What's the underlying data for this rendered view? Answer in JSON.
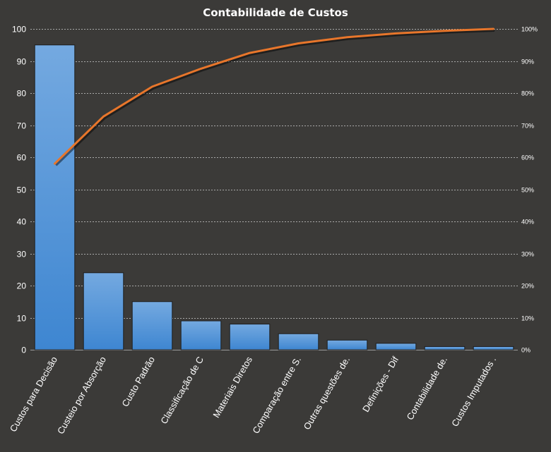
{
  "chart_data": {
    "type": "bar",
    "title": "Contabilidade  de Custos",
    "categories": [
      "Custos para Decisão",
      "Custeio por Absorção",
      "Custo Padrão",
      "Classificação de C",
      "Materiais Diretos",
      "Comparação entre S.",
      "Outras questões de.",
      "Definições - Dif",
      "Contabilidade de.",
      "Custos Imputados ."
    ],
    "series": [
      {
        "type": "bar",
        "values": [
          95,
          24,
          15,
          9,
          8,
          5,
          3,
          2,
          1,
          1
        ],
        "color": "#4a90d9"
      },
      {
        "type": "line",
        "axis": "secondary",
        "values": [
          58,
          72.7,
          82,
          87.6,
          92.5,
          95.5,
          97.4,
          98.6,
          99.4,
          100
        ],
        "color": "#e8762b"
      }
    ],
    "ylim": [
      0,
      100
    ],
    "yticks": [
      "0",
      "10",
      "20",
      "30",
      "40",
      "50",
      "60",
      "70",
      "80",
      "90",
      "100"
    ],
    "y2lim": [
      0,
      100
    ],
    "y2ticks": [
      "0%",
      "10%",
      "20%",
      "30%",
      "40%",
      "50%",
      "60%",
      "70%",
      "80%",
      "90%",
      "100%"
    ],
    "grid": true,
    "colors": {
      "background": "#3b3a38",
      "grid": "#d0d0d0",
      "text": "#ffffff"
    }
  }
}
